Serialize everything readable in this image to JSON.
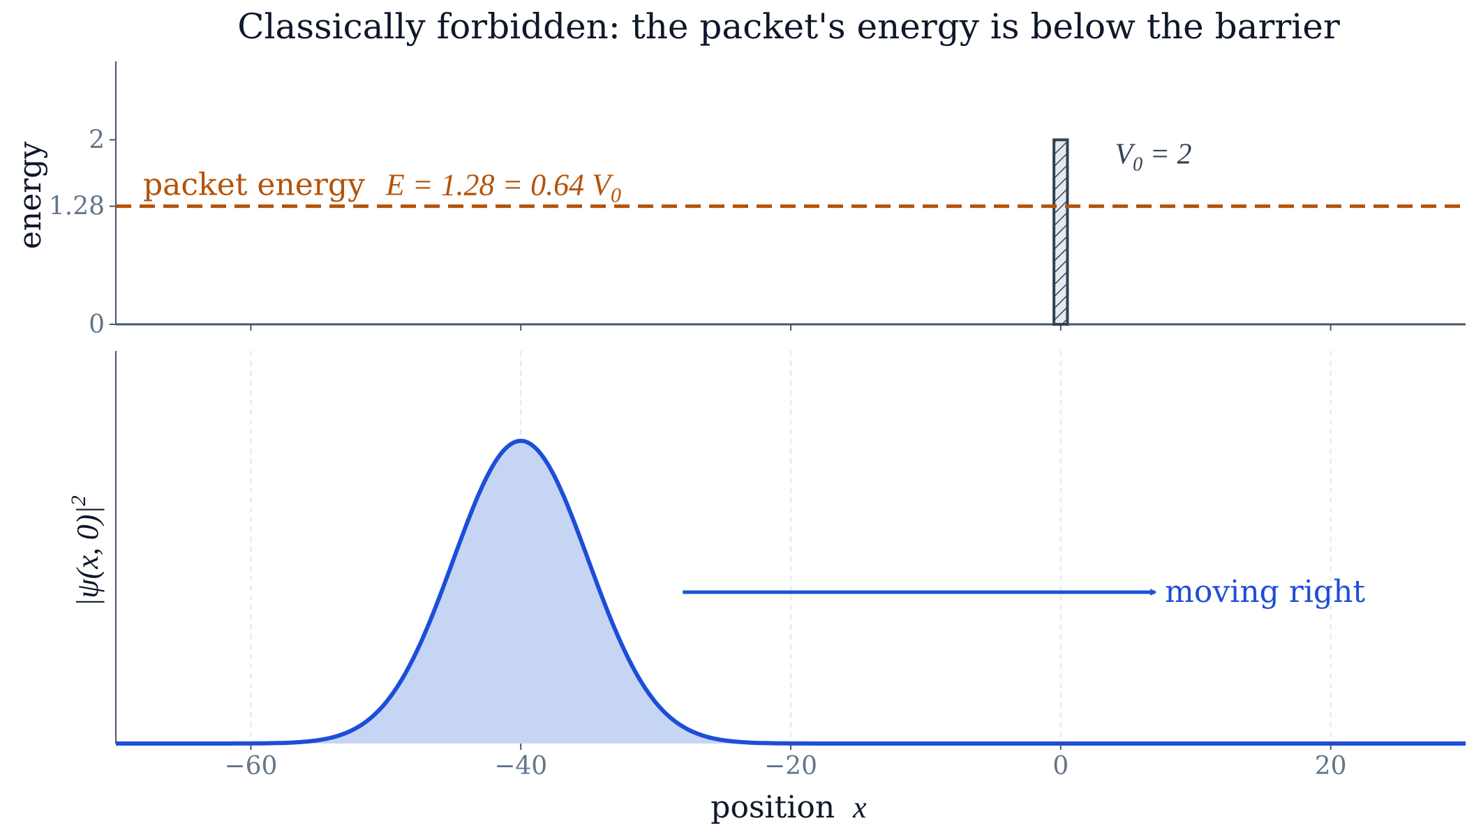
{
  "title": "Classically forbidden: the packet's energy is below the barrier",
  "colors": {
    "text": "#0f172a",
    "tick": "#64748b",
    "axis": "#475569",
    "grid": "#e2e8f0",
    "energy": "#b45309",
    "packet": "#1d4ed8",
    "packet_fill": "#c7d5f5",
    "barrier": "#334155",
    "barrier_fill": "#e5eaf1"
  },
  "chart_data": [
    {
      "type": "line",
      "panel": "top",
      "ylabel": "energy",
      "xlim": [
        -70,
        30
      ],
      "ylim": [
        0,
        2.85
      ],
      "yticks": [
        {
          "value": 0,
          "label": "0"
        },
        {
          "value": 1.28,
          "label": "1.28"
        },
        {
          "value": 2,
          "label": "2"
        }
      ],
      "series": [
        {
          "kind": "hline",
          "y": 1.28,
          "style": "dashed"
        },
        {
          "kind": "barrier",
          "x": [
            -0.5,
            0.5
          ],
          "height": 2,
          "hatch": true
        }
      ],
      "annotations": {
        "energy_label": "packet energy",
        "energy_math": "E = 1.28 = 0.64 V",
        "energy_math_sub": "0",
        "barrier_label": "V",
        "barrier_label_sub": "0",
        "barrier_label_rest": " = 2"
      }
    },
    {
      "type": "area",
      "panel": "bottom",
      "xlabel": "position",
      "xlabel_math": "x",
      "ylabel": "|ψ(x, 0)|",
      "ylabel_sup": "2",
      "xlim": [
        -70,
        30
      ],
      "xticks": [
        {
          "value": -60,
          "label": "−60"
        },
        {
          "value": -40,
          "label": "−40"
        },
        {
          "value": -20,
          "label": "−20"
        },
        {
          "value": 0,
          "label": "0"
        },
        {
          "value": 20,
          "label": "20"
        }
      ],
      "grid_x": true,
      "series": [
        {
          "kind": "gaussian",
          "center": -40,
          "sigma": 5,
          "peak": 1.0
        }
      ],
      "arrow": {
        "from": -28,
        "to": 7,
        "level": 0.5,
        "label": "moving right"
      }
    }
  ]
}
